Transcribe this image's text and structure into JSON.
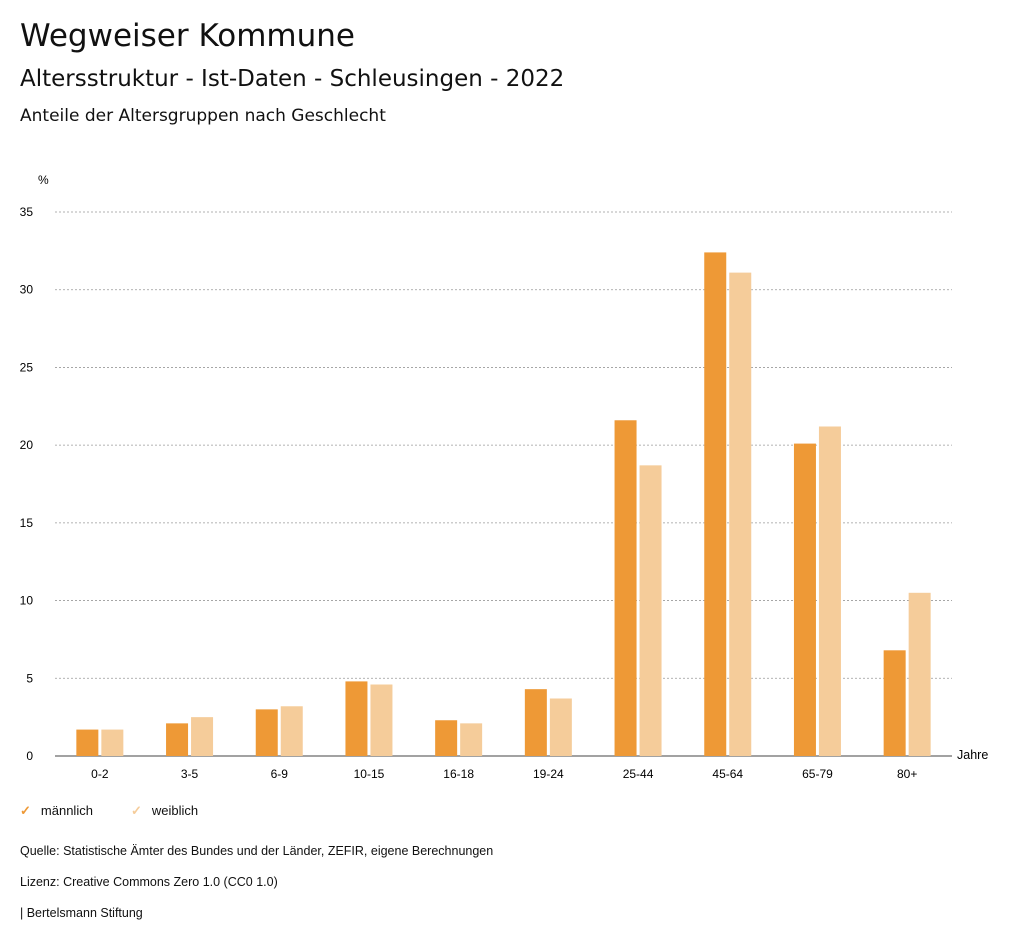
{
  "header": {
    "title": "Wegweiser Kommune",
    "subtitle": "Altersstruktur - Ist-Daten - Schleusingen - 2022",
    "chart_title": "Anteile der Altersgruppen nach Geschlecht"
  },
  "chart_data": {
    "type": "bar",
    "title": "Anteile der Altersgruppen nach Geschlecht",
    "ylabel": "%",
    "xlabel": "Jahre",
    "ylim": [
      0,
      35
    ],
    "yticks": [
      0,
      5,
      10,
      15,
      20,
      25,
      30,
      35
    ],
    "grid": true,
    "legend": "bottom-left",
    "categories": [
      "0-2",
      "3-5",
      "6-9",
      "10-15",
      "16-18",
      "19-24",
      "25-44",
      "45-64",
      "65-79",
      "80+"
    ],
    "series": [
      {
        "name": "männlich",
        "color": "#ee9936",
        "values": [
          1.7,
          2.1,
          3.0,
          4.8,
          2.3,
          4.3,
          21.6,
          32.4,
          20.1,
          6.8
        ]
      },
      {
        "name": "weiblich",
        "color": "#f5cc9a",
        "values": [
          1.7,
          2.5,
          3.2,
          4.6,
          2.1,
          3.7,
          18.7,
          31.1,
          21.2,
          10.5
        ]
      }
    ]
  },
  "footer": {
    "source": "Quelle: Statistische Ämter des Bundes und der Länder, ZEFIR, eigene Berechnungen",
    "license": "Lizenz: Creative Commons Zero 1.0 (CC0 1.0)",
    "brand": "| Bertelsmann Stiftung"
  }
}
